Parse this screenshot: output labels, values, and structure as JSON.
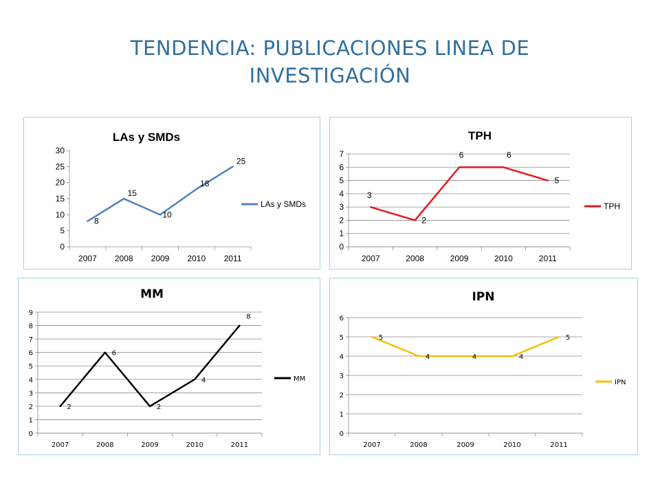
{
  "page": {
    "title_line1": "TENDENCIA: PUBLICACIONES LINEA DE",
    "title_line2": "INVESTIGACIÓN"
  },
  "chart_data": [
    {
      "type": "line",
      "title": "LAs y SMDs",
      "categories": [
        "2007",
        "2008",
        "2009",
        "2010",
        "2011"
      ],
      "series": [
        {
          "name": "LAs y SMDs",
          "values": [
            8,
            15,
            10,
            18,
            25
          ],
          "color": "#4f81bd"
        }
      ],
      "ylim": [
        0,
        30
      ],
      "yticks": [
        0,
        5,
        10,
        15,
        20,
        25,
        30
      ],
      "grid": false,
      "legend": "right",
      "data_labels": true
    },
    {
      "type": "line",
      "title": "TPH",
      "categories": [
        "2007",
        "2008",
        "2009",
        "2010",
        "2011"
      ],
      "series": [
        {
          "name": "TPH",
          "values": [
            3,
            2,
            6,
            6,
            5
          ],
          "color": "#e31a1c"
        }
      ],
      "ylim": [
        0,
        7
      ],
      "yticks": [
        0,
        1,
        2,
        3,
        4,
        5,
        6,
        7
      ],
      "grid": true,
      "legend": "right",
      "data_labels": true
    },
    {
      "type": "line",
      "title": "MM",
      "categories": [
        "2007",
        "2008",
        "2009",
        "2010",
        "2011"
      ],
      "series": [
        {
          "name": "MM",
          "values": [
            2,
            6,
            2,
            4,
            8
          ],
          "color": "#000000"
        }
      ],
      "ylim": [
        0,
        9
      ],
      "yticks": [
        0,
        1,
        2,
        3,
        4,
        5,
        6,
        7,
        8,
        9
      ],
      "grid": true,
      "legend": "right",
      "data_labels": true
    },
    {
      "type": "line",
      "title": "IPN",
      "categories": [
        "2007",
        "2008",
        "2009",
        "2010",
        "2011"
      ],
      "series": [
        {
          "name": "IPN",
          "values": [
            5,
            4,
            4,
            4,
            5
          ],
          "color": "#f5c000"
        }
      ],
      "ylim": [
        0,
        6
      ],
      "yticks": [
        0,
        1,
        2,
        3,
        4,
        5,
        6
      ],
      "grid": true,
      "legend": "right",
      "data_labels": true
    }
  ]
}
